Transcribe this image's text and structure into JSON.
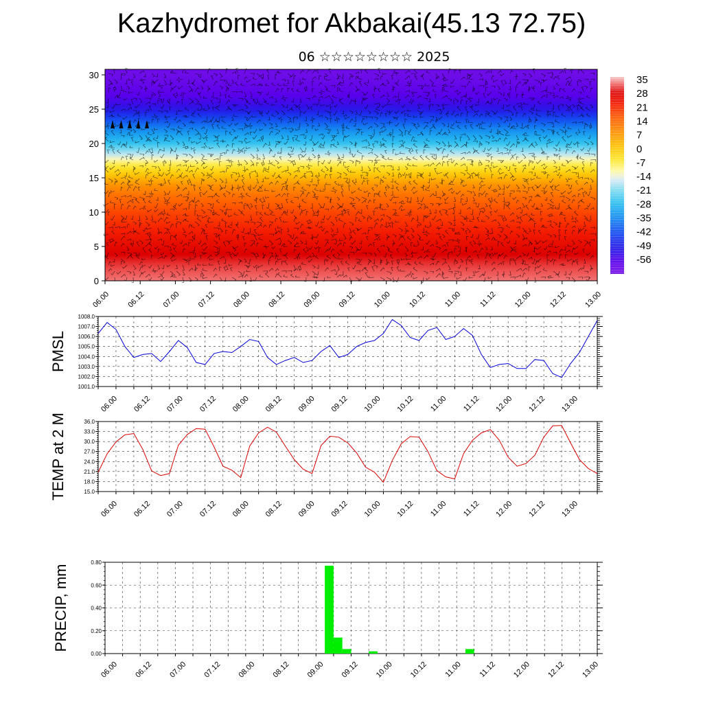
{
  "header": {
    "title": "Kazhydromet for Akbakai(45.13 72.75)",
    "subtitle": "06 ☆☆☆☆☆☆☆☆ 2025"
  },
  "time_labels": [
    "06.00",
    "06.12",
    "07.00",
    "07.12",
    "08.00",
    "08.12",
    "09.00",
    "09.12",
    "10.00",
    "10.12",
    "11.00",
    "11.12",
    "12.00",
    "12.12",
    "13.00"
  ],
  "chart_data": [
    {
      "type": "heatmap",
      "title": "",
      "xlabel": "",
      "ylabel": "",
      "x_tick_labels": [
        "06.00",
        "06.12",
        "07.00",
        "07.12",
        "08.00",
        "08.12",
        "09.00",
        "09.12",
        "10.00",
        "10.12",
        "11.00",
        "11.12",
        "12.00",
        "12.12",
        "13.00"
      ],
      "y_ticks": [
        0,
        5,
        10,
        15,
        20,
        25,
        30
      ],
      "ylim": [
        0,
        30.8
      ],
      "colorbar": {
        "labels": [
          "35",
          "28",
          "21",
          "14",
          "7",
          "0",
          "-7",
          "-14",
          "-21",
          "-28",
          "-35",
          "-42",
          "-49",
          "-56"
        ],
        "range": [
          -60,
          38
        ]
      },
      "profile_by_height": {
        "heights": [
          0,
          2,
          5,
          8,
          10,
          12,
          14,
          15,
          17,
          18,
          20,
          22,
          24,
          25,
          27,
          30
        ],
        "values": [
          35,
          33,
          28,
          23,
          20,
          16,
          10,
          5,
          -5,
          -12,
          -24,
          -32,
          -42,
          -48,
          -54,
          -58
        ]
      },
      "features": "wind barbs overlay"
    },
    {
      "type": "line",
      "title": "",
      "xlabel": "",
      "ylabel": "PMSL",
      "ylim": [
        1001.0,
        1008.0
      ],
      "y_tick_labels": [
        "1001.0",
        "1002.0",
        "1003.0",
        "1004.0",
        "1005.0",
        "1006.0",
        "1007.0",
        "1008.0"
      ],
      "x_tick_labels": [
        "06.00",
        "06.12",
        "07.00",
        "07.12",
        "08.00",
        "08.12",
        "09.00",
        "09.12",
        "10.00",
        "10.12",
        "11.00",
        "11.12",
        "12.00",
        "12.12",
        "13.00"
      ],
      "color": "#0000dd",
      "x_hours": [
        0,
        3,
        6,
        9,
        12,
        15,
        18,
        21,
        24,
        27,
        30,
        33,
        36,
        39,
        42,
        45,
        48,
        51,
        54,
        57,
        60,
        63,
        66,
        69,
        72,
        75,
        78,
        81,
        84,
        87,
        90,
        93,
        96,
        99,
        102,
        105,
        108,
        111,
        114,
        117,
        120,
        123,
        126,
        129,
        132,
        135,
        138,
        141,
        144,
        147,
        150,
        153,
        156,
        159,
        162,
        165,
        168
      ],
      "values": [
        1006.3,
        1007.4,
        1006.7,
        1005.0,
        1003.9,
        1004.2,
        1004.3,
        1003.5,
        1004.5,
        1005.6,
        1004.9,
        1003.4,
        1003.2,
        1004.3,
        1004.5,
        1004.4,
        1005.0,
        1005.7,
        1005.5,
        1003.9,
        1003.2,
        1003.6,
        1003.9,
        1003.4,
        1003.6,
        1004.5,
        1005.1,
        1003.9,
        1004.2,
        1005.0,
        1005.4,
        1005.6,
        1006.3,
        1007.7,
        1007.1,
        1005.9,
        1005.6,
        1006.6,
        1006.9,
        1005.7,
        1006.0,
        1006.8,
        1006.1,
        1004.2,
        1002.9,
        1003.2,
        1003.3,
        1002.8,
        1002.8,
        1003.7,
        1003.6,
        1002.3,
        1001.9,
        1003.3,
        1004.4,
        1006.0,
        1007.6
      ]
    },
    {
      "type": "line",
      "title": "",
      "xlabel": "",
      "ylabel": "TEMP at 2 M",
      "ylim": [
        15.0,
        36.0
      ],
      "y_tick_labels": [
        "15.0",
        "18.0",
        "21.0",
        "24.0",
        "27.0",
        "30.0",
        "33.0",
        "36.0"
      ],
      "x_tick_labels": [
        "06.00",
        "06.12",
        "07.00",
        "07.12",
        "08.00",
        "08.12",
        "09.00",
        "09.12",
        "10.00",
        "10.12",
        "11.00",
        "11.12",
        "12.00",
        "12.12",
        "13.00"
      ],
      "color": "#dd0000",
      "x_hours": [
        0,
        3,
        6,
        9,
        12,
        15,
        18,
        21,
        24,
        27,
        30,
        33,
        36,
        39,
        42,
        45,
        48,
        51,
        54,
        57,
        60,
        63,
        66,
        69,
        72,
        75,
        78,
        81,
        84,
        87,
        90,
        93,
        96,
        99,
        102,
        105,
        108,
        111,
        114,
        117,
        120,
        123,
        126,
        129,
        132,
        135,
        138,
        141,
        144,
        147,
        150,
        153,
        156,
        159,
        162,
        165,
        168
      ],
      "values": [
        20.8,
        26.3,
        29.9,
        32.0,
        32.4,
        27.7,
        21.2,
        19.8,
        20.4,
        28.9,
        32.1,
        33.9,
        33.7,
        28.4,
        22.6,
        21.4,
        19.2,
        28.6,
        32.6,
        34.3,
        32.8,
        28.6,
        24.6,
        21.7,
        20.4,
        28.8,
        31.6,
        31.3,
        29.6,
        26.6,
        22.3,
        20.8,
        17.8,
        24.3,
        29.3,
        31.5,
        31.3,
        27.0,
        21.3,
        19.4,
        18.8,
        26.4,
        30.4,
        32.6,
        33.6,
        30.4,
        25.3,
        22.6,
        23.4,
        25.9,
        31.3,
        34.7,
        34.8,
        29.6,
        24.6,
        21.9,
        20.4
      ]
    },
    {
      "type": "bar",
      "title": "",
      "xlabel": "",
      "ylabel": "PRECIP, mm",
      "ylim": [
        0.0,
        0.8
      ],
      "y_tick_labels": [
        "0.00",
        "0.20",
        "0.40",
        "0.60",
        "0.80"
      ],
      "x_tick_labels": [
        "06.00",
        "06.12",
        "07.00",
        "07.12",
        "08.00",
        "08.12",
        "09.00",
        "09.12",
        "10.00",
        "10.12",
        "11.00",
        "11.12",
        "12.00",
        "12.12",
        "13.00"
      ],
      "color": "#00ee00",
      "x_hours": [
        75,
        78,
        81,
        90,
        123
      ],
      "values": [
        0.77,
        0.14,
        0.04,
        0.02,
        0.04
      ]
    }
  ]
}
